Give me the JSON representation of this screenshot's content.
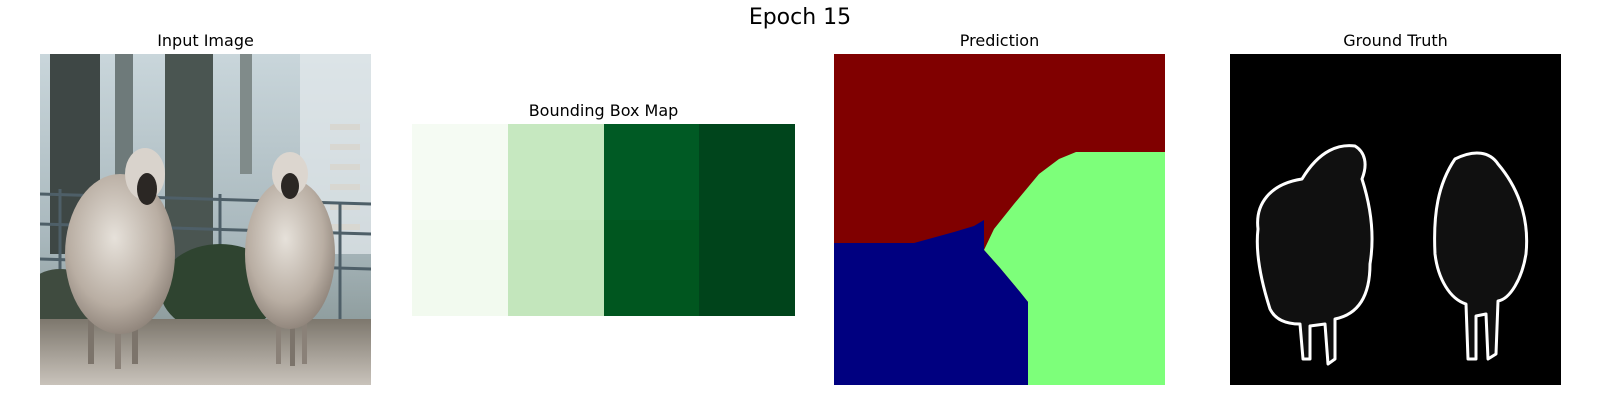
{
  "figure": {
    "suptitle": "Epoch 15"
  },
  "panels": {
    "input": {
      "title": "Input Image"
    },
    "bbox": {
      "title": "Bounding Box Map",
      "colormap": "Greens",
      "cell_colors": [
        [
          "#f5fbf3",
          "#c6e8c0",
          "#005a24",
          "#00451c"
        ],
        [
          "#f2faef",
          "#c3e6bc",
          "#00561f",
          "#00441b"
        ]
      ]
    },
    "prediction": {
      "title": "Prediction",
      "colormap": "jet",
      "class_colors": [
        "#000080",
        "#800000",
        "#7dff7a"
      ]
    },
    "ground_truth": {
      "title": "Ground Truth",
      "colors": {
        "background": "#000000",
        "object": "#101010",
        "outline": "#ffffff"
      }
    }
  }
}
